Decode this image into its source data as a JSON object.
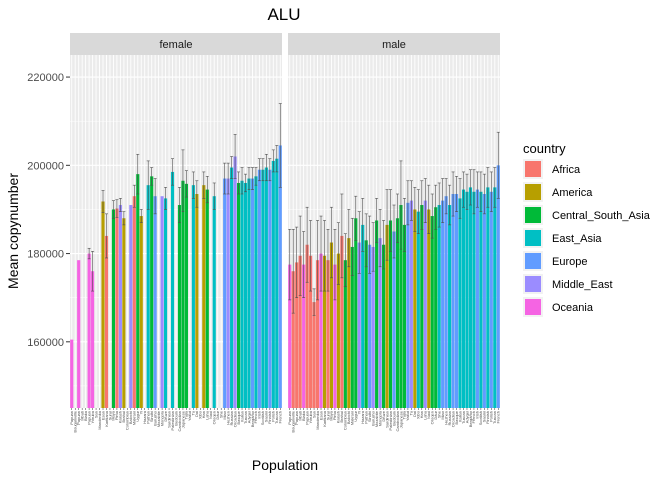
{
  "chart_data": {
    "type": "bar",
    "title": "ALU",
    "xlabel": "Population",
    "ylabel": "Mean copynumber",
    "ylim": [
      145000,
      225000
    ],
    "yticks": [
      160000,
      180000,
      200000,
      220000
    ],
    "ytick_labels": [
      "160000",
      "180000",
      "200000",
      "220000"
    ],
    "grid": true,
    "facets": [
      "female",
      "male"
    ],
    "legend": {
      "title": "country",
      "position": "right",
      "entries": [
        {
          "name": "Africa",
          "color": "#F8766D"
        },
        {
          "name": "America",
          "color": "#B79F00"
        },
        {
          "name": "Central_South_Asia",
          "color": "#00BA38"
        },
        {
          "name": "East_Asia",
          "color": "#00BFC4"
        },
        {
          "name": "Europe",
          "color": "#619CFF"
        },
        {
          "name": "Middle_East",
          "color": "#9B8CFF"
        },
        {
          "name": "Oceania",
          "color": "#F564E3"
        }
      ]
    },
    "categories": [
      "Papuan",
      "Bougainville",
      "Papuan",
      "Mbuti",
      "Biaka",
      "Papuan",
      "Yoruba",
      "San",
      "Mandenka",
      "Esan",
      "Karitiana",
      "Surui",
      "Maya",
      "Pima",
      "Kalash",
      "Brahui",
      "Colombian",
      "Balochi",
      "Makrani",
      "Uygur",
      "Yi",
      "Hazara",
      "Pathan",
      "Sindhi",
      "Burusho",
      "Mozabite",
      "Mongola",
      "Druze",
      "Sardinian",
      "Palestinian",
      "Bedouin",
      "Cambodian",
      "Japanese",
      "Tujia",
      "Yakut",
      "Tu",
      "Dai",
      "Xibo",
      "Han",
      "Lahu",
      "Naxi",
      "Oroqen",
      "Daur",
      "She",
      "Miao",
      "Hezhen",
      "Russian",
      "Orcadian",
      "Basque",
      "Italian",
      "Tuscan",
      "Adygei",
      "Bergamo",
      "French",
      "Irish",
      "Scottish",
      "Saami",
      "Finnish",
      "Polish",
      "Tuscan",
      "French"
    ],
    "series": [
      {
        "name": "female",
        "values": [
          160500,
          null,
          178500,
          null,
          null,
          180000,
          176000,
          null,
          null,
          191800,
          184000,
          null,
          190000,
          190200,
          191000,
          188000,
          null,
          191000,
          193000,
          198000,
          188500,
          null,
          195500,
          197500,
          193000,
          null,
          193000,
          192500,
          null,
          198500,
          null,
          191000,
          196500,
          195800,
          null,
          195500,
          193500,
          null,
          195500,
          194500,
          null,
          193000,
          null,
          null,
          197000,
          197000,
          199500,
          202000,
          196000,
          196500,
          196000,
          197000,
          197000,
          197500,
          199000,
          199000,
          199500,
          199000,
          201000,
          201500,
          204500
        ],
        "errors": [
          null,
          null,
          null,
          null,
          null,
          1200,
          4500,
          null,
          null,
          2500,
          5000,
          null,
          2000,
          2000,
          1500,
          1500,
          null,
          null,
          2500,
          4500,
          1500,
          null,
          5500,
          2000,
          4000,
          null,
          null,
          2500,
          null,
          3000,
          null,
          4000,
          7000,
          3000,
          null,
          3000,
          3000,
          null,
          3000,
          3000,
          null,
          3000,
          null,
          null,
          3500,
          3500,
          2500,
          5000,
          2500,
          3000,
          2000,
          2500,
          2500,
          2000,
          2500,
          2500,
          3000,
          2500,
          2500,
          3000,
          9500
        ],
        "colors": [
          "Oceania",
          "Oceania",
          "Oceania",
          "Oceania",
          "Oceania",
          "Oceania",
          "Oceania",
          "Africa",
          "Africa",
          "America",
          "Africa",
          "America",
          "Central_South_Asia",
          "Africa",
          "Middle_East",
          "America",
          "Central_South_Asia",
          "Middle_East",
          "Africa",
          "Central_South_Asia",
          "America",
          "Central_South_Asia",
          "East_Asia",
          "Central_South_Asia",
          "Europe",
          "Middle_East",
          "Middle_East",
          "East_Asia",
          "Europe",
          "East_Asia",
          "East_Asia",
          "Central_South_Asia",
          "Central_South_Asia",
          "Central_South_Asia",
          "East_Asia",
          "East_Asia",
          "America",
          "Central_South_Asia",
          "America",
          "Central_South_Asia",
          "East_Asia",
          "East_Asia",
          "East_Asia",
          "Central_South_Asia",
          "Europe",
          "Middle_East",
          "East_Asia",
          "Middle_East",
          "Central_South_Asia",
          "East_Asia",
          "East_Asia",
          "East_Asia",
          "Europe",
          "East_Asia",
          "Europe",
          "East_Asia",
          "East_Asia",
          "Europe",
          "East_Asia",
          "East_Asia",
          "Europe"
        ]
      },
      {
        "name": "male",
        "values": [
          177500,
          176000,
          178000,
          179500,
          177500,
          182000,
          179500,
          169000,
          178500,
          180000,
          179500,
          178500,
          182500,
          177500,
          180000,
          184000,
          178500,
          183500,
          181500,
          188000,
          182500,
          186500,
          183000,
          182000,
          181500,
          187500,
          183500,
          182000,
          186500,
          187500,
          185000,
          188000,
          191000,
          186500,
          191500,
          192000,
          190000,
          189500,
          191000,
          192000,
          190000,
          188500,
          190500,
          191000,
          192000,
          193000,
          191000,
          193500,
          193500,
          192500,
          194500,
          194000,
          195000,
          194000,
          194500,
          194000,
          193500,
          195000,
          194000,
          195000,
          200000
        ],
        "errors": [
          8000,
          9500,
          8000,
          9000,
          7500,
          8500,
          8000,
          3000,
          9000,
          8500,
          8000,
          7000,
          8000,
          8000,
          7000,
          9500,
          6000,
          6500,
          6500,
          5000,
          7000,
          6000,
          6000,
          6500,
          5500,
          5000,
          6500,
          5500,
          8000,
          7000,
          6000,
          5500,
          10000,
          6000,
          5000,
          4500,
          5000,
          5000,
          5500,
          5000,
          5500,
          5000,
          5000,
          5000,
          5000,
          4000,
          4500,
          5000,
          4000,
          4500,
          4000,
          4000,
          4000,
          5000,
          4000,
          4500,
          4500,
          4500,
          4500,
          4500,
          7500
        ],
        "colors": [
          "Oceania",
          "Africa",
          "Africa",
          "Africa",
          "Oceania",
          "Africa",
          "Africa",
          "Africa",
          "Africa",
          "Oceania",
          "America",
          "Africa",
          "America",
          "Oceania",
          "America",
          "Africa",
          "Central_South_Asia",
          "America",
          "Central_South_Asia",
          "Central_South_Asia",
          "Middle_East",
          "East_Asia",
          "Central_South_Asia",
          "Europe",
          "Middle_East",
          "Central_South_Asia",
          "Middle_East",
          "Central_South_Asia",
          "America",
          "Central_South_Asia",
          "Europe",
          "Central_South_Asia",
          "Central_South_Asia",
          "Central_South_Asia",
          "Europe",
          "Middle_East",
          "America",
          "East_Asia",
          "Central_South_Asia",
          "Middle_East",
          "America",
          "Central_South_Asia",
          "Central_South_Asia",
          "East_Asia",
          "Europe",
          "Europe",
          "East_Asia",
          "Europe",
          "Europe",
          "East_Asia",
          "East_Asia",
          "East_Asia",
          "East_Asia",
          "East_Asia",
          "Europe",
          "East_Asia",
          "Europe",
          "East_Asia",
          "Europe",
          "East_Asia",
          "Europe"
        ]
      }
    ]
  }
}
